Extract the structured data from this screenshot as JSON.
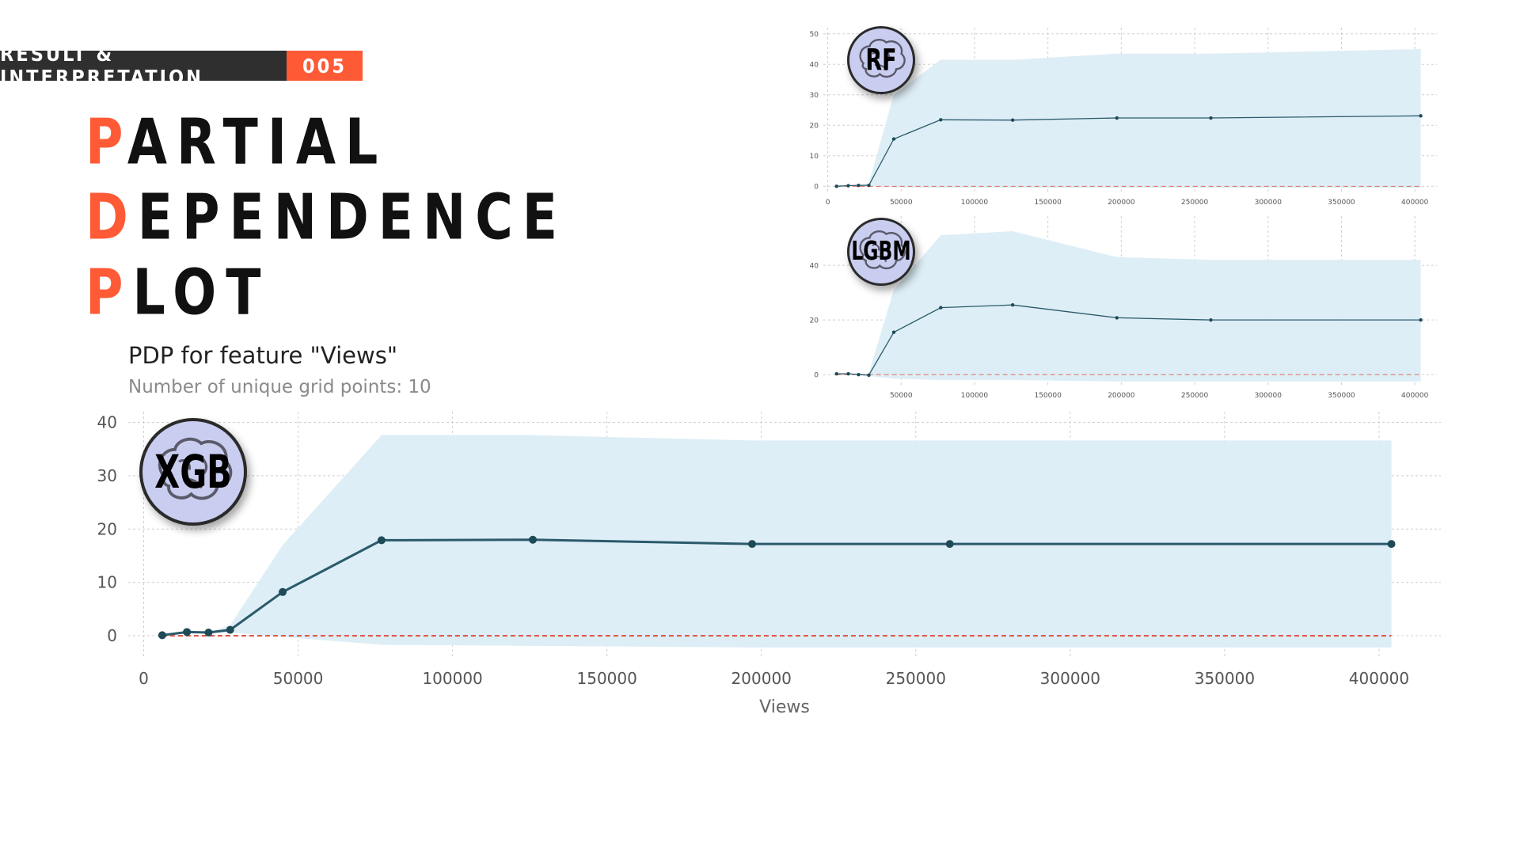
{
  "header": {
    "section_label": "RESULT & INTERPRETATION",
    "section_number": "005"
  },
  "title": {
    "line1_first": "P",
    "line1_rest": "ARTIAL",
    "line2_first": "D",
    "line2_rest": "EPENDENCE",
    "line3_first": "P",
    "line3_rest": "LOT"
  },
  "colors": {
    "accent": "#ff5a36",
    "dark": "#2f2f2f",
    "band": "#dcedf6",
    "line": "#2a5a6b",
    "zero_line": "#e05a4a",
    "badge_fill": "#c9cdf0"
  },
  "badges": {
    "xgb": "XGB",
    "rf": "RF",
    "lgbm": "LGBM"
  },
  "icons": {
    "badge_icon": "brain-icon"
  },
  "chart_data": [
    {
      "id": "xgb",
      "type": "line",
      "title": "PDP for feature \"Views\"",
      "subtitle": "Number of unique grid points: 10",
      "xlabel": "Views",
      "ylabel": "",
      "xlim": [
        -5000,
        420000
      ],
      "ylim": [
        -4,
        42
      ],
      "xticks": [
        0,
        50000,
        100000,
        150000,
        200000,
        250000,
        300000,
        350000,
        400000
      ],
      "yticks": [
        0,
        10,
        20,
        30,
        40
      ],
      "grid": true,
      "x": [
        6000,
        14000,
        21000,
        28000,
        45000,
        77000,
        126000,
        197000,
        261000,
        404000
      ],
      "y": [
        0.1,
        0.7,
        0.6,
        1.1,
        8.2,
        17.9,
        18.0,
        17.2,
        17.2,
        17.2
      ],
      "upper": [
        0.1,
        0.7,
        0.6,
        2.0,
        17.0,
        37.6,
        37.6,
        36.6,
        36.6,
        36.6
      ],
      "lower": [
        0.1,
        0.7,
        0.6,
        0.6,
        -0.2,
        -1.7,
        -1.9,
        -2.2,
        -2.2,
        -2.2
      ],
      "baseline": 0
    },
    {
      "id": "rf",
      "type": "line",
      "xlabel": "Views",
      "xlim": [
        -3000,
        415000
      ],
      "ylim": [
        -2,
        52
      ],
      "xticks": [
        0,
        50000,
        100000,
        150000,
        200000,
        250000,
        300000,
        350000,
        400000
      ],
      "yticks": [
        0,
        10,
        20,
        30,
        40,
        50
      ],
      "grid": true,
      "x": [
        6000,
        14000,
        21000,
        28000,
        45000,
        77000,
        126000,
        197000,
        261000,
        404000
      ],
      "y": [
        0.0,
        0.2,
        0.3,
        0.3,
        15.5,
        21.8,
        21.7,
        22.4,
        22.4,
        23.1
      ],
      "upper": [
        0.0,
        0.2,
        0.3,
        1.0,
        30.0,
        41.5,
        41.5,
        43.5,
        43.5,
        45.0
      ],
      "lower": [
        0.0,
        0.2,
        0.3,
        0.3,
        -0.3,
        -0.5,
        -0.5,
        -0.5,
        -0.5,
        -0.5
      ],
      "baseline": 0
    },
    {
      "id": "lgbm",
      "type": "line",
      "xlabel": "Views",
      "xlim": [
        -3000,
        415000
      ],
      "ylim": [
        -4,
        58
      ],
      "xticks": [
        50000,
        100000,
        150000,
        200000,
        250000,
        300000,
        350000,
        400000
      ],
      "yticks": [
        0,
        20,
        40
      ],
      "grid": true,
      "x": [
        6000,
        14000,
        21000,
        28000,
        45000,
        77000,
        126000,
        197000,
        261000,
        404000
      ],
      "y": [
        0.3,
        0.3,
        0.0,
        -0.2,
        15.5,
        24.5,
        25.5,
        20.8,
        20.0,
        20.0
      ],
      "upper": [
        0.3,
        0.3,
        0.0,
        0.5,
        31.0,
        51.0,
        52.5,
        43.0,
        42.0,
        42.0
      ],
      "lower": [
        0.3,
        0.3,
        0.0,
        -0.5,
        -1.5,
        -2.0,
        -2.0,
        -2.5,
        -2.5,
        -2.5
      ],
      "baseline": 0
    }
  ]
}
